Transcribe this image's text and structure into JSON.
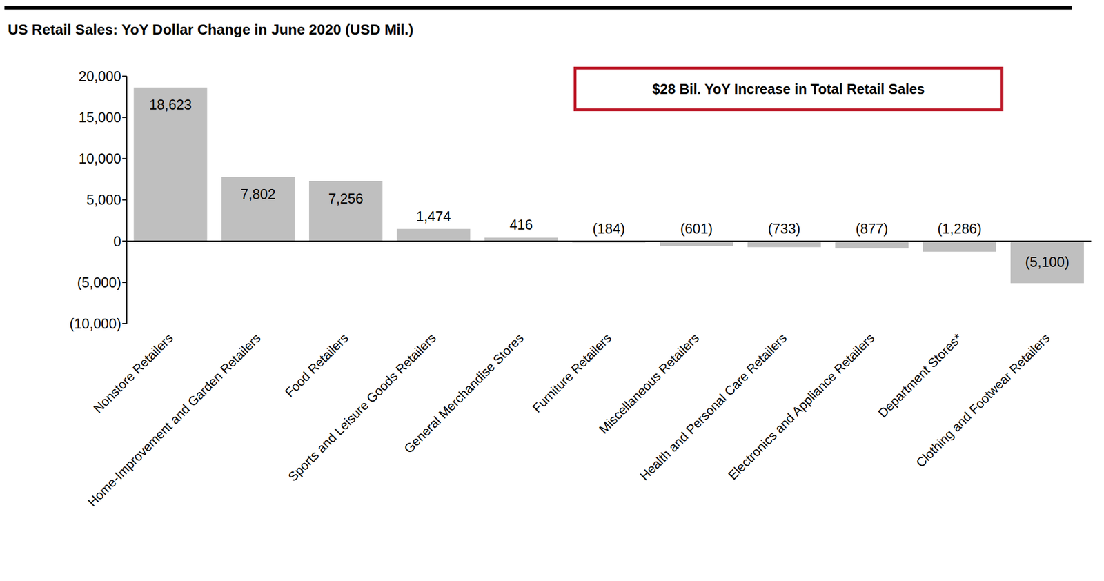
{
  "chart_data": {
    "type": "bar",
    "title": "US Retail Sales: YoY Dollar Change in June 2020 (USD Mil.)",
    "annotation": "$28 Bil. YoY Increase in Total Retail Sales",
    "categories": [
      "Nonstore Retailers",
      "Home-Improvement and Garden Retailers",
      "Food Retailers",
      "Sports and Leisure Goods Retailers",
      "General Merchandise Stores",
      "Furniture Retailers",
      "Miscellaneous Retailers",
      "Health and Personal Care Retailers",
      "Electronics and Appliance Retailers",
      "Department Stores*",
      "Clothing and Footwear Retailers"
    ],
    "values": [
      18623,
      7802,
      7256,
      1474,
      416,
      -184,
      -601,
      -733,
      -877,
      -1286,
      -5100
    ],
    "value_labels": [
      "18,623",
      "7,802",
      "7,256",
      "1,474",
      "416",
      "(184)",
      "(601)",
      "(733)",
      "(877)",
      "(1,286)",
      "(5,100)"
    ],
    "data_labels": true,
    "color": "#bfbfbf",
    "ylim": [
      -10000,
      20000
    ],
    "yticks": [
      {
        "value": -10000,
        "label": "(10,000)"
      },
      {
        "value": -5000,
        "label": "(5,000)"
      },
      0,
      {
        "value": 5000,
        "label": "5,000"
      },
      {
        "value": 10000,
        "label": "10,000"
      },
      {
        "value": 15000,
        "label": "15,000"
      },
      {
        "value": 20000,
        "label": "20,000"
      }
    ],
    "grid": false
  }
}
